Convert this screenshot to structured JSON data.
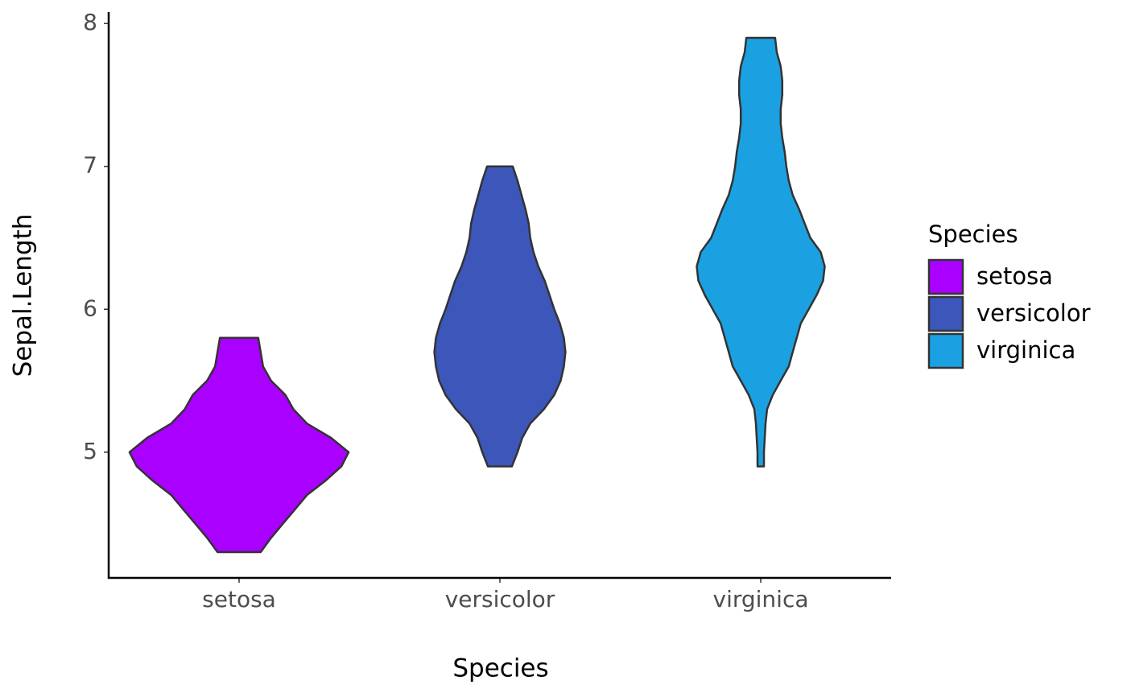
{
  "chart_data": {
    "type": "violin",
    "x_label": "Species",
    "y_label": "Sepal.Length",
    "categories": [
      "setosa",
      "versicolor",
      "virginica"
    ],
    "ylim": [
      4.12,
      8.08
    ],
    "yticks": [
      5,
      6,
      7,
      8
    ],
    "legend_title": "Species",
    "legend": "right",
    "series": [
      {
        "name": "setosa",
        "color": "#aa00ff",
        "y": [
          4.3,
          4.4,
          4.5,
          4.6,
          4.7,
          4.8,
          4.9,
          5.0,
          5.1,
          5.2,
          5.3,
          5.4,
          5.5,
          5.6,
          5.7,
          5.8
        ],
        "density": [
          27,
          40,
          55,
          70,
          85,
          108,
          128,
          137,
          115,
          85,
          68,
          58,
          40,
          30,
          27,
          24
        ]
      },
      {
        "name": "versicolor",
        "color": "#3c56b9",
        "y": [
          4.9,
          5.0,
          5.1,
          5.2,
          5.3,
          5.4,
          5.5,
          5.6,
          5.7,
          5.8,
          5.9,
          6.0,
          6.1,
          6.2,
          6.3,
          6.4,
          6.5,
          6.6,
          6.7,
          6.8,
          6.9,
          7.0
        ],
        "density": [
          15,
          22,
          28,
          38,
          55,
          68,
          76,
          80,
          82,
          80,
          75,
          68,
          62,
          56,
          48,
          42,
          38,
          36,
          32,
          27,
          22,
          16
        ]
      },
      {
        "name": "virginica",
        "color": "#1ba1e2",
        "y": [
          4.9,
          5.0,
          5.1,
          5.2,
          5.3,
          5.4,
          5.5,
          5.6,
          5.7,
          5.8,
          5.9,
          6.0,
          6.1,
          6.2,
          6.3,
          6.4,
          6.5,
          6.6,
          6.7,
          6.8,
          6.9,
          7.0,
          7.1,
          7.2,
          7.3,
          7.4,
          7.5,
          7.6,
          7.7,
          7.8,
          7.9
        ],
        "density": [
          4,
          4,
          5,
          6,
          8,
          15,
          25,
          35,
          40,
          45,
          50,
          60,
          70,
          78,
          80,
          75,
          62,
          55,
          48,
          40,
          35,
          32,
          30,
          27,
          25,
          25,
          27,
          27,
          25,
          20,
          18
        ]
      }
    ]
  }
}
